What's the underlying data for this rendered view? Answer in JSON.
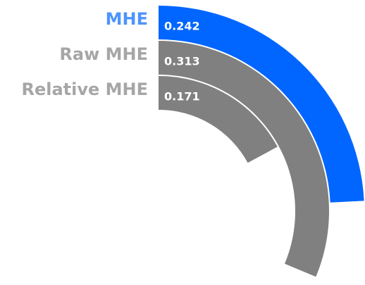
{
  "chart_data": {
    "type": "radial_bar",
    "categories": [
      "MHE",
      "Raw MHE",
      "Relative MHE"
    ],
    "values": [
      0.242,
      0.313,
      0.171
    ],
    "colors": [
      "#0066ff",
      "#808080",
      "#808080"
    ],
    "label_colors": [
      "#4d94ff",
      "#a6a6a6",
      "#a6a6a6"
    ],
    "xlim": [
      0,
      1
    ]
  }
}
